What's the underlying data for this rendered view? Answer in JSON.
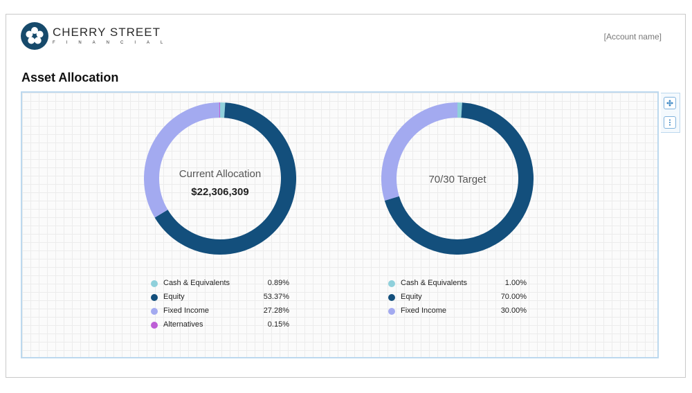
{
  "header": {
    "logo_name": "CHERRY STREET",
    "logo_sub": "FINANCIAL",
    "account_name": "[Account name]"
  },
  "page": {
    "title": "Asset Allocation"
  },
  "colors": {
    "cash": "#8fd0db",
    "equity": "#134f7c",
    "fixed_income": "#a3aaf0",
    "alternatives": "#bd5fd6"
  },
  "chart_data": [
    {
      "type": "pie",
      "center_label": "Current Allocation",
      "center_value": "$22,306,309",
      "categories": [
        "Cash & Equivalents",
        "Equity",
        "Fixed Income",
        "Alternatives"
      ],
      "labels": [
        "0.89%",
        "53.37%",
        "27.28%",
        "0.15%"
      ],
      "values": [
        0.89,
        53.37,
        27.28,
        0.15
      ]
    },
    {
      "type": "pie",
      "center_label": "70/30 Target",
      "categories": [
        "Cash & Equivalents",
        "Equity",
        "Fixed Income"
      ],
      "labels": [
        "1.00%",
        "70.00%",
        "30.00%"
      ],
      "values": [
        1.0,
        70.0,
        30.0
      ]
    }
  ]
}
